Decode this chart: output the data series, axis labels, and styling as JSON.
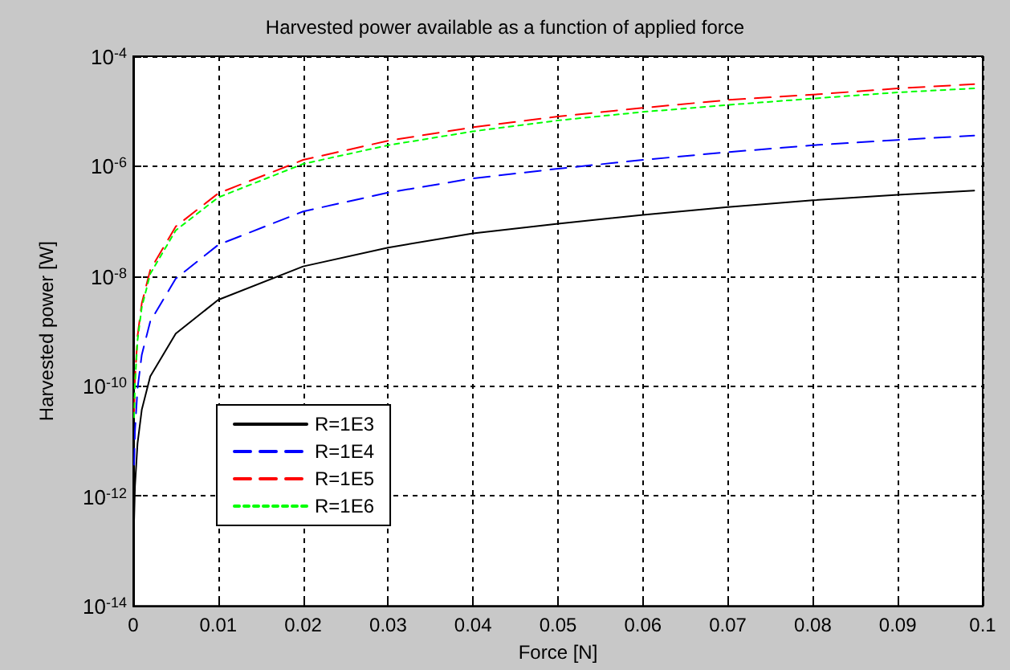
{
  "chart_data": {
    "type": "line",
    "title": "Harvested power available as a function of applied force",
    "xlabel": "Force [N]",
    "ylabel": "Harvested power [W]",
    "x": [
      0.0001,
      0.0002,
      0.0005,
      0.001,
      0.002,
      0.005,
      0.01,
      0.02,
      0.03,
      0.04,
      0.05,
      0.06,
      0.07,
      0.08,
      0.09,
      0.099
    ],
    "series": [
      {
        "name": "R=1E3",
        "color": "#000000",
        "line_style": "solid",
        "values": [
          3.7e-13,
          1.5e-12,
          9e-12,
          3.7e-11,
          1.5e-10,
          9e-10,
          3.7e-09,
          1.5e-08,
          3.3e-08,
          6e-08,
          9e-08,
          1.3e-07,
          1.8e-07,
          2.4e-07,
          3e-07,
          3.6e-07
        ]
      },
      {
        "name": "R=1E4",
        "color": "#0000ff",
        "line_style": "dashed",
        "values": [
          3.7e-12,
          1.5e-11,
          9e-11,
          3.7e-10,
          1.5e-09,
          9e-09,
          3.7e-08,
          1.5e-07,
          3.3e-07,
          6e-07,
          9e-07,
          1.3e-06,
          1.8e-06,
          2.4e-06,
          3e-06,
          3.6e-06
        ]
      },
      {
        "name": "R=1E5",
        "color": "#ff0000",
        "line_style": "dashed",
        "values": [
          3.2e-11,
          1.3e-10,
          8e-10,
          3.2e-09,
          1.3e-08,
          8e-08,
          3.2e-07,
          1.3e-06,
          2.9e-06,
          5.1e-06,
          8e-06,
          1.15e-05,
          1.6e-05,
          2e-05,
          2.6e-05,
          3.1e-05
        ]
      },
      {
        "name": "R=1E6",
        "color": "#00ff00",
        "line_style": "dotted",
        "values": [
          2.7e-11,
          1.1e-10,
          6.8e-10,
          2.7e-09,
          1.1e-08,
          6.8e-08,
          2.7e-07,
          1.1e-06,
          2.4e-06,
          4.3e-06,
          6.8e-06,
          9.7e-06,
          1.3e-05,
          1.7e-05,
          2.2e-05,
          2.6e-05
        ]
      }
    ],
    "xlim": [
      0,
      0.1
    ],
    "xticks": [
      0,
      0.01,
      0.02,
      0.03,
      0.04,
      0.05,
      0.06,
      0.07,
      0.08,
      0.09,
      0.1
    ],
    "ylim": [
      1e-14,
      0.0001
    ],
    "yticks": [
      {
        "value": 1e-14,
        "label": "10$^{-14}$"
      },
      {
        "value": 1e-12,
        "label": "10$^{-12}$"
      },
      {
        "value": 1e-10,
        "label": "10$^{-10}$"
      },
      {
        "value": 1e-08,
        "label": "10$^{-8}$"
      },
      {
        "value": 1e-06,
        "label": "10$^{-6}$"
      },
      {
        "value": 0.0001,
        "label": "10$^{-4}$"
      }
    ],
    "log": "y",
    "grid": true,
    "legend": "bottom left",
    "marker": "none"
  }
}
